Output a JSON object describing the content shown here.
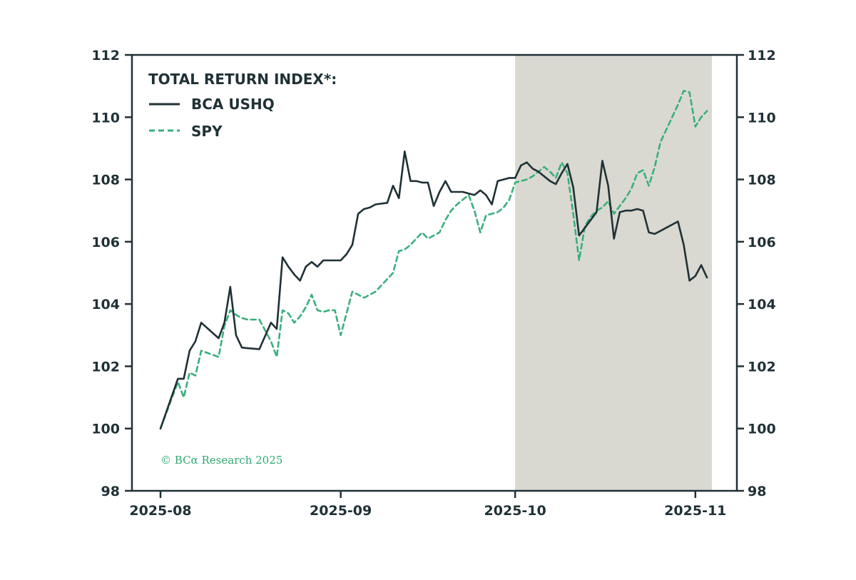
{
  "colors": {
    "ushq": "#1f3136",
    "spy": "#3aaf7c",
    "shade": "#d9d9d1",
    "axis": "#1f3136"
  },
  "legend": {
    "title": "TOTAL RETURN INDEX*:",
    "items": [
      "BCA USHQ",
      "SPY"
    ]
  },
  "copyright": "© BCα Research 2025",
  "chart_data": {
    "type": "line",
    "title": "TOTAL RETURN INDEX*:",
    "xlabel": "",
    "ylabel": "",
    "x_ticks": [
      "2025-08",
      "2025-09",
      "2025-10",
      "2025-11"
    ],
    "x_tick_days": [
      0,
      31,
      61,
      92
    ],
    "xlim_days": [
      0,
      94
    ],
    "ylim": [
      98,
      112
    ],
    "y_ticks": [
      98,
      100,
      102,
      104,
      106,
      108,
      110,
      112
    ],
    "y_axis_right": true,
    "grid": false,
    "legend_position": "top-left",
    "shaded_region": {
      "from": "2025-10",
      "to_day": 94
    },
    "series": [
      {
        "name": "BCA USHQ",
        "style": "solid",
        "x": [
          0,
          3,
          4,
          5,
          6,
          7,
          10,
          11,
          12,
          13,
          14,
          15,
          17,
          19,
          20,
          21,
          22,
          23,
          24,
          25,
          26,
          27,
          28,
          29,
          30,
          31,
          32,
          33,
          34,
          35,
          36,
          37,
          39,
          40,
          41,
          42,
          43,
          44,
          45,
          46,
          47,
          48,
          49,
          50,
          51,
          52,
          53,
          54,
          55,
          56,
          57,
          58,
          59,
          60,
          61,
          62,
          63,
          64,
          65,
          66,
          67,
          68,
          69,
          70,
          71,
          72,
          73,
          74,
          75,
          76,
          77,
          78,
          79,
          80,
          81,
          82,
          83,
          84,
          85,
          86,
          87,
          88,
          89,
          90,
          91,
          92,
          93,
          94
        ],
        "y": [
          100.0,
          101.6,
          101.6,
          102.5,
          102.8,
          103.4,
          102.9,
          103.4,
          104.55,
          103.0,
          102.6,
          102.58,
          102.55,
          103.4,
          103.2,
          105.5,
          105.2,
          104.95,
          104.75,
          105.2,
          105.35,
          105.2,
          105.4,
          105.4,
          105.4,
          105.4,
          105.6,
          105.9,
          106.9,
          107.05,
          107.1,
          107.2,
          107.25,
          107.8,
          107.4,
          108.9,
          107.95,
          107.95,
          107.9,
          107.9,
          107.15,
          107.6,
          107.95,
          107.6,
          107.6,
          107.6,
          107.55,
          107.5,
          107.65,
          107.5,
          107.2,
          107.95,
          108.0,
          108.05,
          108.05,
          108.45,
          108.55,
          108.35,
          108.25,
          108.1,
          107.95,
          107.85,
          108.2,
          108.5,
          107.75,
          106.2,
          106.45,
          106.7,
          106.95,
          108.6,
          107.8,
          106.1,
          106.95,
          107.0,
          107.0,
          107.05,
          107.0,
          106.3,
          106.25,
          106.35,
          106.45,
          106.55,
          106.65,
          105.9,
          104.75,
          104.9,
          105.25,
          104.85
        ]
      },
      {
        "name": "SPY",
        "style": "dashed",
        "x": [
          0,
          3,
          4,
          5,
          6,
          7,
          10,
          11,
          12,
          13,
          14,
          15,
          17,
          19,
          20,
          21,
          22,
          23,
          24,
          25,
          26,
          27,
          28,
          29,
          30,
          31,
          32,
          33,
          34,
          35,
          36,
          37,
          39,
          40,
          41,
          42,
          43,
          44,
          45,
          46,
          47,
          48,
          49,
          50,
          51,
          52,
          53,
          54,
          55,
          56,
          57,
          58,
          59,
          60,
          61,
          62,
          63,
          64,
          65,
          66,
          67,
          68,
          69,
          70,
          71,
          72,
          73,
          74,
          75,
          76,
          77,
          78,
          79,
          80,
          81,
          82,
          83,
          84,
          85,
          86,
          87,
          88,
          89,
          90,
          91,
          92,
          93,
          94
        ],
        "y": [
          100.0,
          101.5,
          101.0,
          101.8,
          101.7,
          102.5,
          102.3,
          103.3,
          103.8,
          103.65,
          103.55,
          103.5,
          103.5,
          102.8,
          102.3,
          103.8,
          103.7,
          103.4,
          103.6,
          103.9,
          104.3,
          103.8,
          103.75,
          103.8,
          103.8,
          103.0,
          103.7,
          104.4,
          104.3,
          104.2,
          104.3,
          104.4,
          104.8,
          105.0,
          105.7,
          105.75,
          105.9,
          106.1,
          106.3,
          106.1,
          106.2,
          106.3,
          106.7,
          107.0,
          107.2,
          107.35,
          107.5,
          107.0,
          106.3,
          106.85,
          106.9,
          106.95,
          107.1,
          107.35,
          107.9,
          107.95,
          108.0,
          108.1,
          108.25,
          108.4,
          108.25,
          108.05,
          108.55,
          108.2,
          106.9,
          105.4,
          106.5,
          106.8,
          107.0,
          107.1,
          107.3,
          106.9,
          107.15,
          107.4,
          107.7,
          108.2,
          108.3,
          107.8,
          108.4,
          109.2,
          109.6,
          110.0,
          110.4,
          110.85,
          110.8,
          109.7,
          110.0,
          110.2
        ]
      }
    ]
  }
}
